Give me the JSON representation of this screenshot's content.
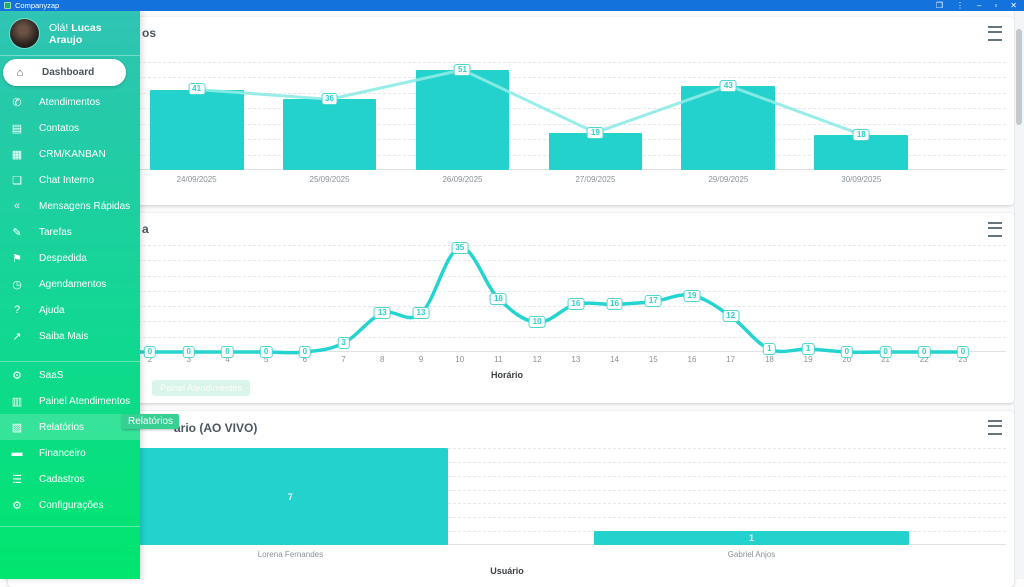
{
  "titlebar": {
    "app_name": "Companyzap",
    "icons": [
      {
        "name": "open-in-window-icon",
        "glyph": "❐"
      },
      {
        "name": "kebab-menu-icon",
        "glyph": "⋮"
      },
      {
        "name": "minimize-icon",
        "glyph": "–"
      },
      {
        "name": "maximize-icon",
        "glyph": "▫"
      },
      {
        "name": "close-icon",
        "glyph": "✕"
      }
    ]
  },
  "sidebar": {
    "greeting": "Olá!",
    "user_name": "Lucas Araujo",
    "tooltip": "Relatórios",
    "items": [
      {
        "label": "Dashboard",
        "icon": "home-icon",
        "glyph": "⌂",
        "active": true
      },
      {
        "label": "Atendimentos",
        "icon": "whatsapp-icon",
        "glyph": "✆"
      },
      {
        "label": "Contatos",
        "icon": "contact-card-icon",
        "glyph": "▤"
      },
      {
        "label": "CRM/KANBAN",
        "icon": "kanban-board-icon",
        "glyph": "▦"
      },
      {
        "label": "Chat Interno",
        "icon": "chat-bubble-icon",
        "glyph": "❏"
      },
      {
        "label": "Mensagens Rápidas",
        "icon": "double-arrows-icon",
        "glyph": "«"
      },
      {
        "label": "Tarefas",
        "icon": "clipboard-icon",
        "glyph": "✎"
      },
      {
        "label": "Despedida",
        "icon": "farewell-flag-icon",
        "glyph": "⚑"
      },
      {
        "label": "Agendamentos",
        "icon": "clock-icon",
        "glyph": "◷"
      },
      {
        "label": "Ajuda",
        "icon": "question-icon",
        "glyph": "?"
      },
      {
        "label": "Saiba Mais",
        "icon": "external-link-icon",
        "glyph": "↗"
      }
    ],
    "items_secondary": [
      {
        "label": "SaaS",
        "icon": "gear-icon",
        "glyph": "⚙"
      },
      {
        "label": "Painel Atendimentos",
        "icon": "panel-icon",
        "glyph": "▥"
      },
      {
        "label": "Relatórios",
        "icon": "report-icon",
        "glyph": "▨",
        "hovered": true
      },
      {
        "label": "Financeiro",
        "icon": "money-icon",
        "glyph": "▬"
      },
      {
        "label": "Cadastros",
        "icon": "list-icon",
        "glyph": "☰"
      },
      {
        "label": "Configurações",
        "icon": "settings-gear-icon",
        "glyph": "⚙"
      }
    ]
  },
  "cards": [
    {
      "menu_icon": "hamburger-menu-icon"
    },
    {
      "menu_icon": "hamburger-menu-icon",
      "ghost_button_label": "Painel Atendimentos"
    },
    {
      "menu_icon": "hamburger-menu-icon"
    }
  ],
  "chart_data": [
    {
      "type": "bar",
      "subtype": "bars-with-line-overlay",
      "title_visible": "os",
      "categories": [
        "24/09/2025",
        "25/09/2025",
        "26/09/2025",
        "27/09/2025",
        "29/09/2025",
        "30/09/2025"
      ],
      "values": [
        41,
        36,
        51,
        19,
        43,
        18
      ],
      "xlabel": "",
      "ylabel": "",
      "ylim": [
        0,
        55
      ],
      "grid": true,
      "bar_color": "#23d2cc",
      "line_color": "#8debe6"
    },
    {
      "type": "line",
      "title_visible": "a",
      "x": [
        2,
        3,
        4,
        5,
        6,
        7,
        8,
        9,
        10,
        11,
        12,
        13,
        14,
        15,
        16,
        17,
        18,
        19,
        20,
        21,
        22,
        23
      ],
      "values": [
        0,
        0,
        0,
        0,
        0,
        3,
        13,
        13,
        35,
        18,
        10,
        16,
        16,
        17,
        19,
        12,
        1,
        1,
        0,
        0,
        0,
        0
      ],
      "xlabel": "Horário",
      "ylabel": "",
      "ylim": [
        0,
        36
      ],
      "grid": true,
      "line_color": "#25d4d0"
    },
    {
      "type": "bar",
      "title_visible": "ário (AO VIVO)",
      "categories": [
        "Lorena Fernandes",
        "Gabriel Anjos"
      ],
      "values": [
        7,
        1
      ],
      "xlabel": "Usuário",
      "ylabel": "",
      "ylim": [
        0,
        7
      ],
      "grid": true,
      "bar_color": "#23d2cc"
    }
  ],
  "colors": {
    "titlebar_blue": "#1372dc",
    "sidebar_teal_top": "#2fc4b4",
    "sidebar_green_bottom": "#00e66e",
    "chart_cyan": "#23d2cc",
    "tooltip_green": "#38cf92"
  }
}
